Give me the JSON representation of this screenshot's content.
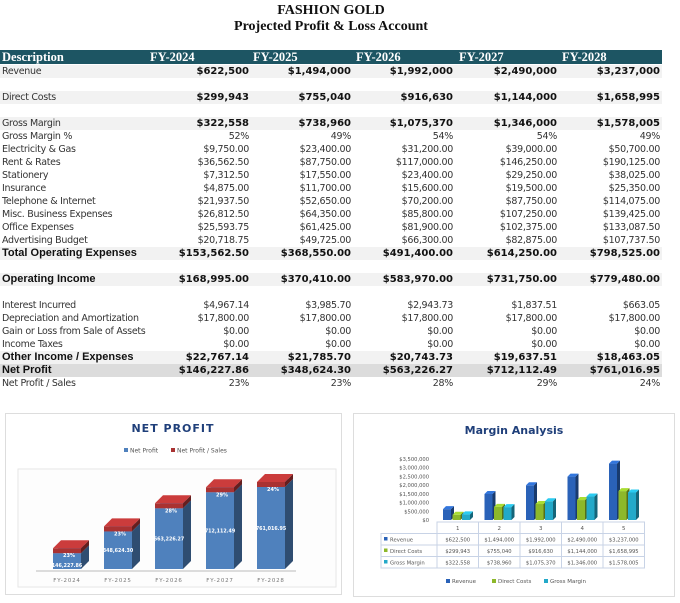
{
  "title": "FASHION GOLD",
  "subtitle": "Projected Profit & Loss Account",
  "header": {
    "description": "Description",
    "years": [
      "FY-2024",
      "FY-2025",
      "FY-2026",
      "FY-2027",
      "FY-2028"
    ]
  },
  "rows": [
    {
      "label": "Revenue",
      "values": [
        "$622,500",
        "$1,494,000",
        "$1,992,000",
        "$2,490,000",
        "$3,237,000"
      ],
      "style": "bold-num shade"
    },
    {
      "label": "",
      "values": [],
      "style": ""
    },
    {
      "label": "Direct Costs",
      "values": [
        "$299,943",
        "$755,040",
        "$916,630",
        "$1,144,000",
        "$1,658,995"
      ],
      "style": "bold-num shade"
    },
    {
      "label": "",
      "values": [],
      "style": ""
    },
    {
      "label": "Gross Margin",
      "values": [
        "$322,558",
        "$738,960",
        "$1,075,370",
        "$1,346,000",
        "$1,578,005"
      ],
      "style": "bold-num shade"
    },
    {
      "label": "Gross Margin %",
      "values": [
        "52%",
        "49%",
        "54%",
        "54%",
        "49%"
      ],
      "style": ""
    },
    {
      "label": "Electricity & Gas",
      "values": [
        "$9,750.00",
        "$23,400.00",
        "$31,200.00",
        "$39,000.00",
        "$50,700.00"
      ],
      "style": ""
    },
    {
      "label": "Rent & Rates",
      "values": [
        "$36,562.50",
        "$87,750.00",
        "$117,000.00",
        "$146,250.00",
        "$190,125.00"
      ],
      "style": ""
    },
    {
      "label": "Stationery",
      "values": [
        "$7,312.50",
        "$17,550.00",
        "$23,400.00",
        "$29,250.00",
        "$38,025.00"
      ],
      "style": ""
    },
    {
      "label": "Insurance",
      "values": [
        "$4,875.00",
        "$11,700.00",
        "$15,600.00",
        "$19,500.00",
        "$25,350.00"
      ],
      "style": ""
    },
    {
      "label": "Telephone & Internet",
      "values": [
        "$21,937.50",
        "$52,650.00",
        "$70,200.00",
        "$87,750.00",
        "$114,075.00"
      ],
      "style": ""
    },
    {
      "label": "Misc. Business Expenses",
      "values": [
        "$26,812.50",
        "$64,350.00",
        "$85,800.00",
        "$107,250.00",
        "$139,425.00"
      ],
      "style": ""
    },
    {
      "label": "Office Expenses",
      "values": [
        "$25,593.75",
        "$61,425.00",
        "$81,900.00",
        "$102,375.00",
        "$133,087.50"
      ],
      "style": ""
    },
    {
      "label": "Advertising Budget",
      "values": [
        "$20,718.75",
        "$49,725.00",
        "$66,300.00",
        "$82,875.00",
        "$107,737.50"
      ],
      "style": ""
    },
    {
      "label": "Total Operating Expenses",
      "values": [
        "$153,562.50",
        "$368,550.00",
        "$491,400.00",
        "$614,250.00",
        "$798,525.00"
      ],
      "style": "bold shade"
    },
    {
      "label": "",
      "values": [],
      "style": ""
    },
    {
      "label": "Operating Income",
      "values": [
        "$168,995.00",
        "$370,410.00",
        "$583,970.00",
        "$731,750.00",
        "$779,480.00"
      ],
      "style": "bold shade"
    },
    {
      "label": "",
      "values": [],
      "style": ""
    },
    {
      "label": "Interest Incurred",
      "values": [
        "$4,967.14",
        "$3,985.70",
        "$2,943.73",
        "$1,837.51",
        "$663.05"
      ],
      "style": ""
    },
    {
      "label": "Depreciation and Amortization",
      "values": [
        "$17,800.00",
        "$17,800.00",
        "$17,800.00",
        "$17,800.00",
        "$17,800.00"
      ],
      "style": ""
    },
    {
      "label": "Gain or Loss from Sale of Assets",
      "values": [
        "$0.00",
        "$0.00",
        "$0.00",
        "$0.00",
        "$0.00"
      ],
      "style": ""
    },
    {
      "label": "Income Taxes",
      "values": [
        "$0.00",
        "$0.00",
        "$0.00",
        "$0.00",
        "$0.00"
      ],
      "style": ""
    },
    {
      "label": "Other Income / Expenses",
      "values": [
        "$22,767.14",
        "$21,785.70",
        "$20,743.73",
        "$19,637.51",
        "$18,463.05"
      ],
      "style": "bold shade"
    },
    {
      "label": "Net Profit",
      "values": [
        "$146,227.86",
        "$348,624.30",
        "$563,226.27",
        "$712,112.49",
        "$761,016.95"
      ],
      "style": "bold dark"
    },
    {
      "label": "Net Profit / Sales",
      "values": [
        "23%",
        "23%",
        "28%",
        "29%",
        "24%"
      ],
      "style": ""
    }
  ],
  "chart_data": [
    {
      "type": "bar",
      "title": "NET PROFIT",
      "categories": [
        "FY-2024",
        "FY-2025",
        "FY-2026",
        "FY-2027",
        "FY-2028"
      ],
      "series": [
        {
          "name": "Net Profit",
          "values": [
            146227.86,
            348624.3,
            563226.27,
            712112.49,
            761016.95
          ],
          "labels": [
            "146,227.86",
            "348,624.30",
            "563,226.27",
            "712,112.49",
            "761,016.95"
          ],
          "color": "#4f81bd"
        },
        {
          "name": "Net Profit / Sales",
          "values": [
            23,
            23,
            28,
            29,
            24
          ],
          "labels": [
            "23%",
            "23%",
            "28%",
            "29%",
            "24%"
          ],
          "color": "#a93232"
        }
      ],
      "legend": "top"
    },
    {
      "type": "bar",
      "title": "Margin Analysis",
      "categories": [
        "1",
        "2",
        "3",
        "4",
        "5"
      ],
      "yticks": [
        "$3,500,000",
        "$3,000,000",
        "$2,500,000",
        "$2,000,000",
        "$1,500,000",
        "$1,000,000",
        "$500,000",
        "$0"
      ],
      "ylim": [
        0,
        3500000
      ],
      "series": [
        {
          "name": "Revenue",
          "values": [
            622500,
            1494000,
            1992000,
            2490000,
            3237000
          ],
          "labels": [
            "$622,500",
            "$1,494,000",
            "$1,992,000",
            "$2,490,000",
            "$3,237,000"
          ],
          "color": "#2a62b8"
        },
        {
          "name": "Direct Costs",
          "values": [
            299943,
            755040,
            916630,
            1144000,
            1658995
          ],
          "labels": [
            "$299,943",
            "$755,040",
            "$916,630",
            "$1,144,000",
            "$1,658,995"
          ],
          "color": "#8db82a"
        },
        {
          "name": "Gross Margin",
          "values": [
            322558,
            738960,
            1075370,
            1346000,
            1578005
          ],
          "labels": [
            "$322,558",
            "$738,960",
            "$1,075,370",
            "$1,346,000",
            "$1,578,005"
          ],
          "color": "#23a9c9"
        }
      ],
      "legend": "bottom",
      "data_table": true
    }
  ]
}
